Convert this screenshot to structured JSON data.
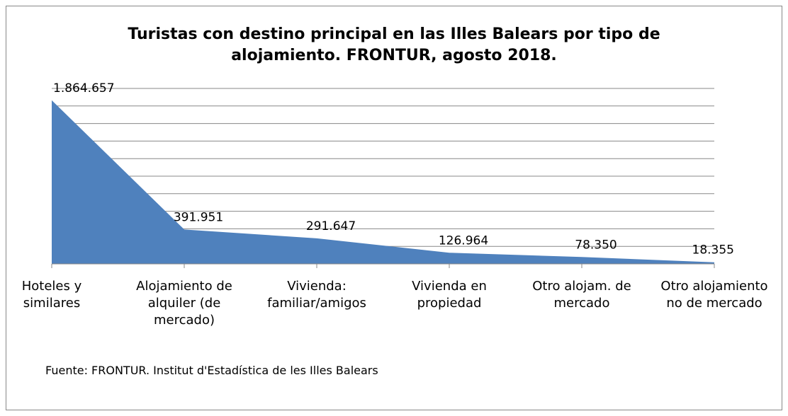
{
  "chart_data": {
    "type": "area",
    "title": "Turistas con destino principal en las Illes Balears por tipo de alojamiento. FRONTUR, agosto 2018.",
    "categories": [
      "Hoteles y similares",
      "Alojamiento de alquiler (de mercado)",
      "Vivienda: familiar/amigos",
      "Vivienda en propiedad",
      "Otro alojam. de mercado",
      "Otro alojamiento no de mercado"
    ],
    "values": [
      1864657,
      391951,
      291647,
      126964,
      78350,
      18355
    ],
    "value_labels": [
      "1.864.657",
      "391.951",
      "291.647",
      "126.964",
      "78.350",
      "18.355"
    ],
    "color": "#4f81bd",
    "ylim": [
      0,
      2000000
    ],
    "yticks": [
      0,
      200000,
      400000,
      600000,
      800000,
      1000000,
      1200000,
      1400000,
      1600000,
      1800000,
      2000000
    ],
    "grid": true,
    "source": "Fuente: FRONTUR. Institut d'Estadística de les Illes Balears"
  }
}
